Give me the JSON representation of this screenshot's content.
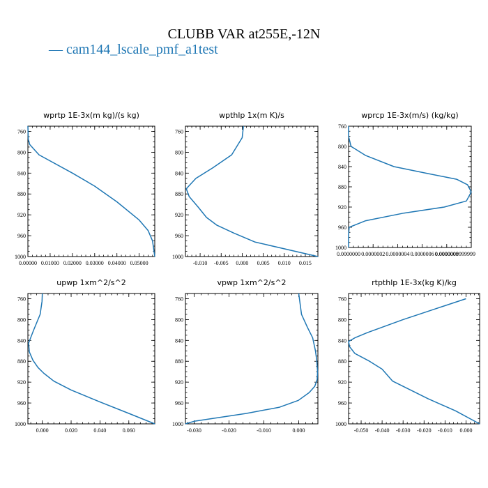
{
  "title": "CLUBB VAR at255E,-12N",
  "legend": [
    {
      "label": "— cam144_lscale_pmf_a1test",
      "color": "#1f77b4"
    }
  ],
  "chart_data": [
    {
      "type": "line",
      "title": "wprtp  1E-3x(m kg)/(s kg)",
      "xlim": [
        0.0,
        0.057
      ],
      "ylim": [
        1000,
        750
      ],
      "xticks": [
        0.0,
        0.01,
        0.02,
        0.03,
        0.04,
        0.05
      ],
      "xticklabels": [
        "0.00000",
        "0.01000",
        "0.02000",
        "0.03000",
        "0.04000",
        "0.05000"
      ],
      "yticks": [
        760,
        800,
        840,
        880,
        920,
        960,
        1000
      ],
      "yticklabels": [
        "760",
        "800",
        "840",
        "880",
        "920",
        "960",
        "1000"
      ],
      "series": [
        {
          "x": [
            0.0,
            0.0002,
            0.0008,
            0.005,
            0.02,
            0.03,
            0.04,
            0.05,
            0.054,
            0.056,
            0.057
          ],
          "y": [
            750,
            775,
            785,
            805,
            840,
            865,
            895,
            930,
            950,
            970,
            1000
          ]
        }
      ]
    },
    {
      "type": "line",
      "title": "wpthlp  1x(m K)/s",
      "xlim": [
        -0.0135,
        0.018
      ],
      "ylim": [
        1000,
        750
      ],
      "xticks": [
        -0.01,
        -0.005,
        0.0,
        0.005,
        0.01,
        0.015
      ],
      "xticklabels": [
        "-0.010",
        "-0.005",
        "0.000",
        "0.005",
        "0.010",
        "0.015"
      ],
      "yticks": [
        760,
        800,
        840,
        880,
        920,
        960,
        1000
      ],
      "yticklabels": [
        "760",
        "800",
        "840",
        "880",
        "920",
        "960",
        "1000"
      ],
      "series": [
        {
          "x": [
            0.0003,
            0.0,
            -0.0025,
            -0.007,
            -0.011,
            -0.0133,
            -0.0126,
            -0.0105,
            -0.0085,
            -0.006,
            -0.002,
            0.003,
            0.018
          ],
          "y": [
            750,
            772,
            805,
            830,
            850,
            870,
            885,
            905,
            925,
            940,
            955,
            972,
            1000
          ]
        }
      ]
    },
    {
      "type": "line",
      "title": "wprcp  1E-3x(m/s) (kg/kg)",
      "xlim": [
        0.0,
        1e-06
      ],
      "ylim": [
        1000,
        760
      ],
      "xticks": [
        0.0,
        2e-07,
        4e-07,
        6e-07,
        8e-07,
        1e-06
      ],
      "xticklabels": [
        "0.0000000",
        "0.0000002",
        "0.0000004",
        "0.0000006",
        "0.0000008",
        "0.0000010"
      ],
      "xticklabel_last": "0.0000009999999",
      "yticks": [
        760,
        800,
        840,
        880,
        920,
        960,
        1000
      ],
      "yticklabels": [
        "760",
        "800",
        "840",
        "880",
        "920",
        "960",
        "1000"
      ],
      "series": [
        {
          "x": [
            0.0,
            0.0,
            2e-08,
            1.4e-07,
            3.7e-07,
            6.3e-07,
            8.8e-07,
            9.7e-07,
            1e-06,
            9.6e-07,
            7.8e-07,
            4.5e-07,
            1.4e-07,
            5e-09,
            0.0,
            0.0
          ],
          "y": [
            760,
            780,
            800,
            818,
            840,
            853,
            865,
            876,
            890,
            908,
            920,
            932,
            947,
            960,
            975,
            1000
          ]
        }
      ]
    },
    {
      "type": "line",
      "title": "upwp  1xm^2/s^2",
      "xlim": [
        -0.01,
        0.078
      ],
      "ylim": [
        1000,
        750
      ],
      "xticks": [
        0.0,
        0.02,
        0.04,
        0.06
      ],
      "xticklabels": [
        "0.000",
        "0.020",
        "0.040",
        "0.060"
      ],
      "yticks": [
        760,
        800,
        840,
        880,
        920,
        960,
        1000
      ],
      "yticklabels": [
        "760",
        "800",
        "840",
        "880",
        "920",
        "960",
        "1000"
      ],
      "series": [
        {
          "x": [
            0.0,
            -0.0002,
            -0.0015,
            -0.006,
            -0.0095,
            -0.009,
            -0.0065,
            -0.003,
            0.001,
            0.008,
            0.02,
            0.04,
            0.06,
            0.078
          ],
          "y": [
            750,
            765,
            790,
            820,
            845,
            862,
            878,
            892,
            903,
            918,
            935,
            958,
            980,
            1000
          ]
        }
      ]
    },
    {
      "type": "line",
      "title": "vpwp  1xm^2/s^2",
      "xlim": [
        -0.0325,
        0.0055
      ],
      "ylim": [
        1000,
        750
      ],
      "xticks": [
        -0.03,
        -0.02,
        -0.01,
        0.0
      ],
      "xticklabels": [
        "-0.030",
        "-0.020",
        "-0.010",
        "0.000"
      ],
      "yticks": [
        760,
        800,
        840,
        880,
        920,
        960,
        1000
      ],
      "yticklabels": [
        "760",
        "800",
        "840",
        "880",
        "920",
        "960",
        "1000"
      ],
      "series": [
        {
          "x": [
            0.0,
            0.0008,
            0.0025,
            0.004,
            0.0048,
            0.0052,
            0.0054,
            0.0053,
            0.0046,
            0.003,
            -0.0001,
            -0.0055,
            -0.015,
            -0.03,
            -0.0325
          ],
          "y": [
            750,
            790,
            815,
            835,
            860,
            880,
            900,
            915,
            928,
            940,
            955,
            968,
            980,
            995,
            1000
          ]
        }
      ]
    },
    {
      "type": "line",
      "title": "rtpthlp  1E-3x(kg K)/kg",
      "xlim": [
        -0.056,
        0.0065
      ],
      "ylim": [
        1000,
        750
      ],
      "xticks": [
        -0.05,
        -0.04,
        -0.03,
        -0.02,
        -0.01,
        0.0
      ],
      "xticklabels": [
        "-0.050",
        "-0.040",
        "-0.030",
        "-0.020",
        "-0.010",
        "0.000"
      ],
      "yticks": [
        760,
        800,
        840,
        880,
        920,
        960,
        1000
      ],
      "yticklabels": [
        "760",
        "800",
        "840",
        "880",
        "920",
        "960",
        "1000"
      ],
      "series": [
        {
          "x": [
            0.0,
            -0.015,
            -0.03,
            -0.047,
            -0.053,
            -0.056,
            -0.0555,
            -0.053,
            -0.046,
            -0.04,
            -0.035,
            -0.018,
            -0.005,
            0.0065
          ],
          "y": [
            760,
            780,
            800,
            825,
            835,
            842,
            852,
            865,
            880,
            895,
            918,
            952,
            975,
            1000
          ]
        }
      ]
    }
  ]
}
